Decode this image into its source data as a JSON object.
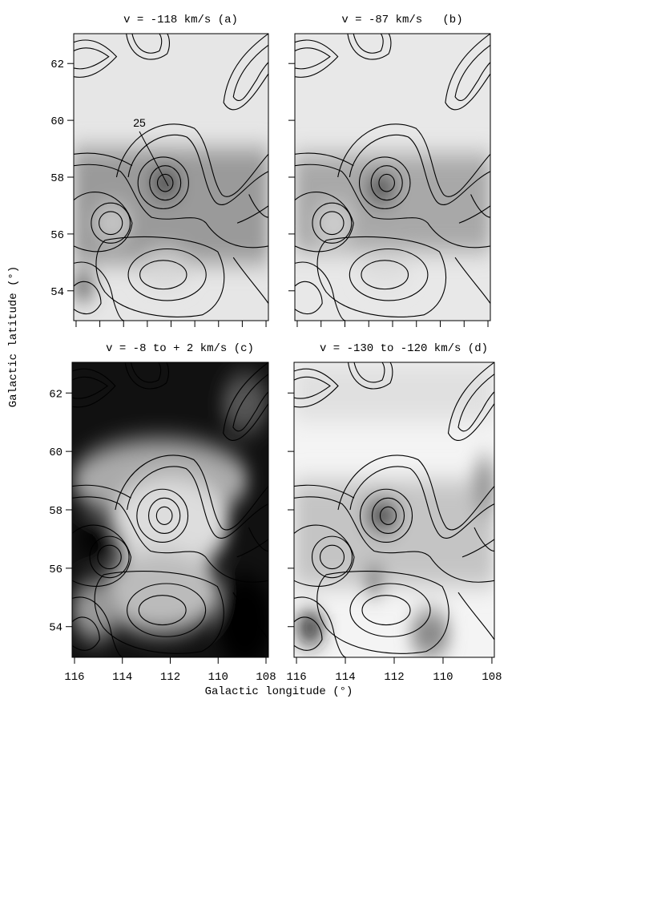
{
  "xlabel": "Galactic longitude (°)",
  "ylabel": "Galactic latitude (°)",
  "chart_data": [
    {
      "type": "contour",
      "title": "v = -118 km/s (a)",
      "annotation": "25",
      "xlim": [
        116.1,
        107.9
      ],
      "ylim": [
        52.95,
        63.05
      ],
      "xticks": [
        116,
        115,
        114,
        113,
        112,
        111,
        110,
        109,
        108
      ],
      "yticks": [
        54,
        56,
        58,
        60,
        62
      ],
      "xtick_labels": false,
      "ytick_labels": true
    },
    {
      "type": "contour",
      "title": "v = -87 km/s   (b)",
      "xlim": [
        116.1,
        107.9
      ],
      "ylim": [
        52.95,
        63.05
      ],
      "xticks": [
        116,
        115,
        114,
        113,
        112,
        111,
        110,
        109,
        108
      ],
      "yticks": [
        54,
        56,
        58,
        60,
        62
      ],
      "xtick_labels": false,
      "ytick_labels": false
    },
    {
      "type": "contour",
      "title": "v = -8 to + 2 km/s (c)",
      "xlim": [
        116.1,
        107.9
      ],
      "ylim": [
        52.95,
        63.05
      ],
      "xticks": [
        116,
        114,
        112,
        110,
        108
      ],
      "yticks": [
        54,
        56,
        58,
        60,
        62
      ],
      "xtick_labels": true,
      "ytick_labels": true
    },
    {
      "type": "contour",
      "title": "v = -130 to -120 km/s (d)",
      "xlim": [
        116.1,
        107.9
      ],
      "ylim": [
        52.95,
        63.05
      ],
      "xticks": [
        116,
        114,
        112,
        110,
        108
      ],
      "yticks": [
        54,
        56,
        58,
        60,
        62
      ],
      "xtick_labels": true,
      "ytick_labels": false
    }
  ]
}
